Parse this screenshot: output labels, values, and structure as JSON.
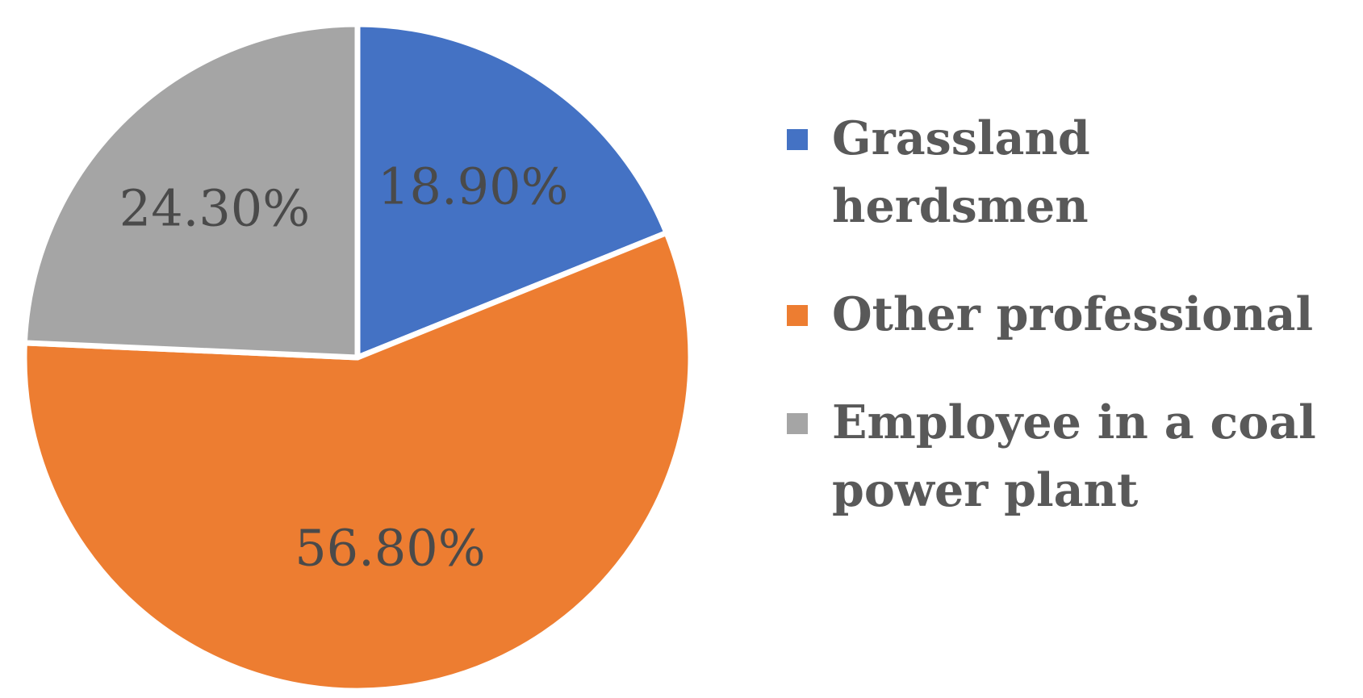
{
  "chart_data": {
    "type": "pie",
    "slices": [
      {
        "name": "Grassland herdsmen",
        "value": 18.9,
        "label": "18.90%",
        "color": "#4472C4"
      },
      {
        "name": "Other professional",
        "value": 56.8,
        "label": "56.80%",
        "color": "#ED7D31"
      },
      {
        "name": "Employee in a coal\npower plant",
        "value": 24.3,
        "label": "24.30%",
        "color": "#A5A5A5"
      }
    ],
    "legend_position": "right",
    "start_angle": "top",
    "direction": "clockwise"
  }
}
